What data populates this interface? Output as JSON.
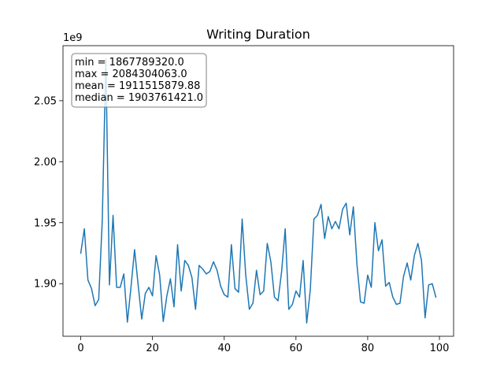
{
  "chart_data": {
    "type": "line",
    "title": "Writing Duration",
    "xlabel": "",
    "ylabel": "",
    "y_offset_label": "1e9",
    "xlim": [
      -4.95,
      103.95
    ],
    "ylim": [
      1856900000.0,
      2095100000.0
    ],
    "x_ticks": [
      0,
      20,
      40,
      60,
      80,
      100
    ],
    "x_tick_labels": [
      "0",
      "20",
      "40",
      "60",
      "80",
      "100"
    ],
    "y_ticks": [
      1900000000.0,
      1950000000.0,
      2000000000.0,
      2050000000.0
    ],
    "y_tick_labels": [
      "1.90",
      "1.95",
      "2.00",
      "2.05"
    ],
    "grid": false,
    "line_color": "#1f77b4",
    "stats_box": {
      "placement": "top-left",
      "lines": [
        "min = 1867789320.0",
        "max = 2084304063.0",
        "mean = 1911515879.88",
        "median = 1903761421.0"
      ]
    },
    "series": [
      {
        "x": [
          0,
          1,
          2,
          3,
          4,
          5,
          6,
          7,
          8,
          9,
          10,
          11,
          12,
          13,
          14,
          15,
          16,
          17,
          18,
          19,
          20,
          21,
          22,
          23,
          24,
          25,
          26,
          27,
          28,
          29,
          30,
          31,
          32,
          33,
          34,
          35,
          36,
          37,
          38,
          39,
          40,
          41,
          42,
          43,
          44,
          45,
          46,
          47,
          48,
          49,
          50,
          51,
          52,
          53,
          54,
          55,
          56,
          57,
          58,
          59,
          60,
          61,
          62,
          63,
          64,
          65,
          66,
          67,
          68,
          69,
          70,
          71,
          72,
          73,
          74,
          75,
          76,
          77,
          78,
          79,
          80,
          81,
          82,
          83,
          84,
          85,
          86,
          87,
          88,
          89,
          90,
          91,
          92,
          93,
          94,
          95,
          96,
          97,
          98,
          99
        ],
        "values": [
          1925000000.0,
          1945000000.0,
          1903000000.0,
          1896000000.0,
          1882000000.0,
          1887000000.0,
          1952000000.0,
          2084300000.0,
          1899000000.0,
          1956000000.0,
          1897000000.0,
          1897000000.0,
          1908000000.0,
          1868500000.0,
          1897000000.0,
          1928000000.0,
          1899000000.0,
          1871000000.0,
          1892000000.0,
          1897000000.0,
          1890000000.0,
          1923000000.0,
          1907000000.0,
          1869000000.0,
          1890000000.0,
          1904000000.0,
          1881000000.0,
          1932000000.0,
          1894000000.0,
          1919000000.0,
          1915000000.0,
          1905000000.0,
          1879000000.0,
          1915000000.0,
          1912000000.0,
          1908000000.0,
          1910000000.0,
          1918000000.0,
          1911000000.0,
          1898000000.0,
          1891000000.0,
          1889000000.0,
          1932000000.0,
          1896000000.0,
          1893000000.0,
          1953000000.0,
          1907000000.0,
          1879000000.0,
          1884000000.0,
          1911000000.0,
          1891000000.0,
          1894000000.0,
          1933000000.0,
          1918000000.0,
          1889000000.0,
          1886000000.0,
          1910000000.0,
          1945000000.0,
          1879000000.0,
          1883000000.0,
          1894000000.0,
          1889000000.0,
          1919000000.0,
          1867800000.0,
          1895000000.0,
          1953000000.0,
          1956000000.0,
          1965000000.0,
          1937000000.0,
          1955000000.0,
          1945000000.0,
          1951000000.0,
          1945000000.0,
          1961000000.0,
          1966000000.0,
          1940000000.0,
          1963000000.0,
          1916000000.0,
          1885000000.0,
          1884000000.0,
          1907000000.0,
          1897000000.0,
          1950000000.0,
          1927000000.0,
          1936000000.0,
          1898000000.0,
          1901000000.0,
          1889000000.0,
          1883000000.0,
          1884000000.0,
          1906000000.0,
          1917000000.0,
          1903000000.0,
          1923000000.0,
          1933000000.0,
          1919000000.0,
          1872000000.0,
          1899000000.0,
          1900000000.0,
          1889000000.0
        ]
      }
    ]
  }
}
